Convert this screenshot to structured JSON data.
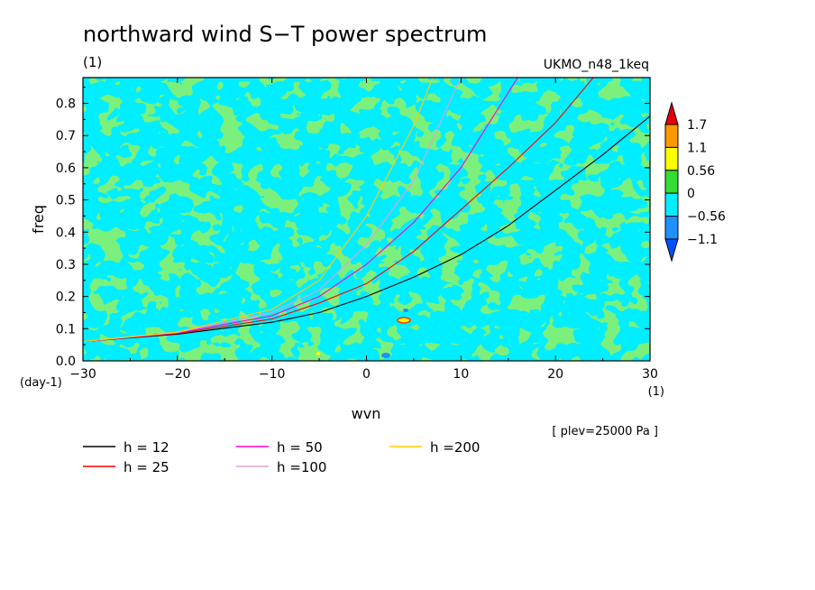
{
  "chart_data": {
    "type": "contour",
    "title": "northward wind S−T power spectrum",
    "subtitle_left": "(1)",
    "subtitle_right": "UKMO_n48_1keq",
    "xlabel": "wvn",
    "ylabel": "freq",
    "x_unit": "(1)",
    "y_unit": "(day-1)",
    "xlim": [
      -30,
      30
    ],
    "ylim": [
      0,
      0.88
    ],
    "x_ticks": [
      -30,
      -20,
      -10,
      0,
      10,
      20,
      30
    ],
    "x_tick_labels": [
      "−30",
      "−20",
      "−10",
      "0",
      "10",
      "20",
      "30"
    ],
    "y_ticks": [
      0,
      0.1,
      0.2,
      0.3,
      0.4,
      0.5,
      0.6,
      0.7,
      0.8
    ],
    "y_tick_labels": [
      "0.0",
      "0.1",
      "0.2",
      "0.3",
      "0.4",
      "0.5",
      "0.6",
      "0.7",
      "0.8"
    ],
    "annotation": "[ plev=25000 Pa ]",
    "colorbar": {
      "levels": [
        "1.7",
        "1.1",
        "0.56",
        "0",
        "−0.56",
        "−1.1"
      ],
      "colors": [
        "#e8000b",
        "#ff9900",
        "#ffff00",
        "#33dd33",
        "#00eeff",
        "#1e90ff",
        "#0050ff"
      ]
    },
    "series": [
      {
        "name": "h = 12",
        "h": 12,
        "color": "#000000",
        "x": [
          -30,
          -20,
          -10,
          -5,
          0,
          5,
          10,
          15,
          20,
          25,
          30
        ],
        "y": [
          0.06,
          0.083,
          0.12,
          0.15,
          0.2,
          0.26,
          0.33,
          0.42,
          0.53,
          0.64,
          0.76
        ]
      },
      {
        "name": "h = 25",
        "h": 25,
        "color": "#ff0000",
        "x": [
          -30,
          -20,
          -10,
          -5,
          0,
          5,
          10,
          15,
          20,
          24
        ],
        "y": [
          0.06,
          0.085,
          0.13,
          0.18,
          0.24,
          0.34,
          0.47,
          0.6,
          0.74,
          0.88
        ]
      },
      {
        "name": "h = 50",
        "h": 50,
        "color": "#ff00cc",
        "x": [
          -30,
          -20,
          -10,
          -5,
          0,
          5,
          10,
          16
        ],
        "y": [
          0.06,
          0.087,
          0.14,
          0.2,
          0.3,
          0.43,
          0.6,
          0.88
        ]
      },
      {
        "name": "h =100",
        "h": 100,
        "color": "#dda0dd",
        "x": [
          -30,
          -20,
          -10,
          -5,
          0,
          5,
          10
        ],
        "y": [
          0.06,
          0.088,
          0.15,
          0.22,
          0.36,
          0.56,
          0.88
        ]
      },
      {
        "name": "h =200",
        "h": 200,
        "color": "#ffcc00",
        "x": [
          -30,
          -20,
          -10,
          -5,
          0,
          5,
          7
        ],
        "y": [
          0.06,
          0.09,
          0.16,
          0.25,
          0.45,
          0.73,
          0.88
        ]
      }
    ]
  }
}
